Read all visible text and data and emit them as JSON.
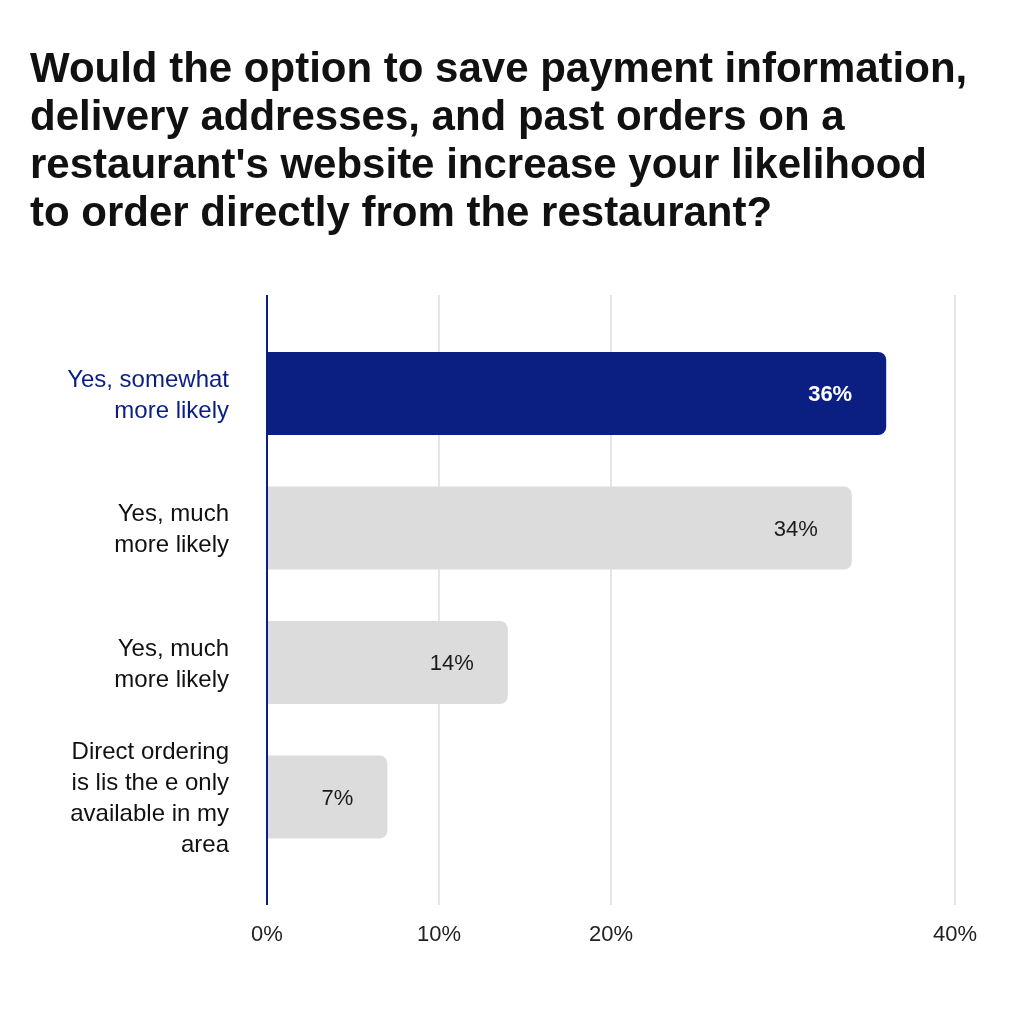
{
  "chart_data": {
    "type": "bar",
    "orientation": "horizontal",
    "title": "Would the option to save payment information, delivery addresses, and past orders on a restaurant's website increase your likelihood to order directly from the restaurant?",
    "categories": [
      "Yes, somewhat more likely",
      "Yes, much more likely",
      "Yes, much more likely",
      "Direct ordering is lis the e only available in my area"
    ],
    "values": [
      36,
      34,
      14,
      7
    ],
    "colors": [
      "#0b1f82",
      "#dcdcdc",
      "#dcdcdc",
      "#dcdcdc"
    ],
    "value_labels": [
      "36%",
      "34%",
      "14%",
      "7%"
    ],
    "xlim": [
      0,
      40
    ],
    "xticks": [
      {
        "value": 0,
        "label": "0%"
      },
      {
        "value": 10,
        "label": "10%"
      },
      {
        "value": 20,
        "label": "20%"
      },
      {
        "value": 40,
        "label": "40%"
      }
    ],
    "grid": "x"
  }
}
